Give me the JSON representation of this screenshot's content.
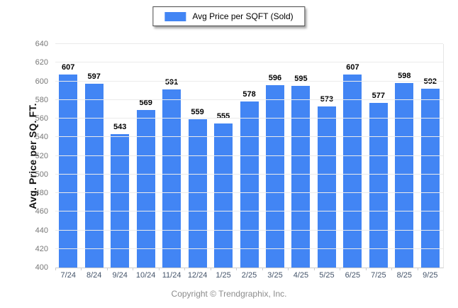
{
  "chart_data": {
    "type": "bar",
    "legend_label": "Avg Price per SQFT (Sold)",
    "ylabel": "Avg. Price per SQ. FT.",
    "categories": [
      "7/24",
      "8/24",
      "9/24",
      "10/24",
      "11/24",
      "12/24",
      "1/25",
      "2/25",
      "3/25",
      "4/25",
      "5/25",
      "6/25",
      "7/25",
      "8/25",
      "9/25"
    ],
    "values": [
      607,
      597,
      543,
      569,
      591,
      559,
      555,
      578,
      596,
      595,
      573,
      607,
      577,
      598,
      592
    ],
    "ylim": [
      400,
      640
    ],
    "ytick_step": 20,
    "grid": "horizontal",
    "legend_position": "top-center",
    "bar_color": "#4285F4",
    "footer": "Copyright © Trendgraphix, Inc."
  }
}
